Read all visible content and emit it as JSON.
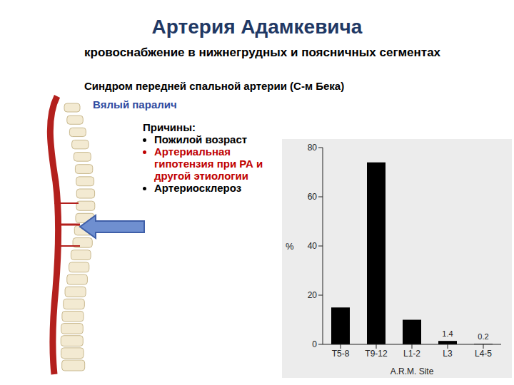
{
  "slide": {
    "title": "Артерия Адамкевича",
    "subtitle": "кровоснабжение в нижнегрудных и поясничных сегментах",
    "syndrome": "Синдром передней спальной артерии (С-м Бека)",
    "symptom": "Вялый паралич",
    "causes_title": "Причины:",
    "causes": [
      {
        "text": "Пожилой возраст",
        "color": "#000000"
      },
      {
        "text": "Артериальная гипотензия при РА и другой этиологии",
        "color": "#c00000"
      },
      {
        "text": "Артериосклероз",
        "color": "#000000"
      }
    ]
  },
  "chart_data": {
    "type": "bar",
    "categories": [
      "T5-8",
      "T9-12",
      "L1-2",
      "L3",
      "L4-5"
    ],
    "values": [
      15,
      74,
      10,
      1.4,
      0.2
    ],
    "value_labels": [
      null,
      null,
      null,
      "1.4",
      "0.2"
    ],
    "data_labels": true,
    "color": "#000000",
    "ylim": [
      0,
      80
    ],
    "yticks": [
      0,
      20,
      40,
      60,
      80
    ],
    "x_label": "A.R.M. Site",
    "y_label": "%",
    "grid": false
  }
}
